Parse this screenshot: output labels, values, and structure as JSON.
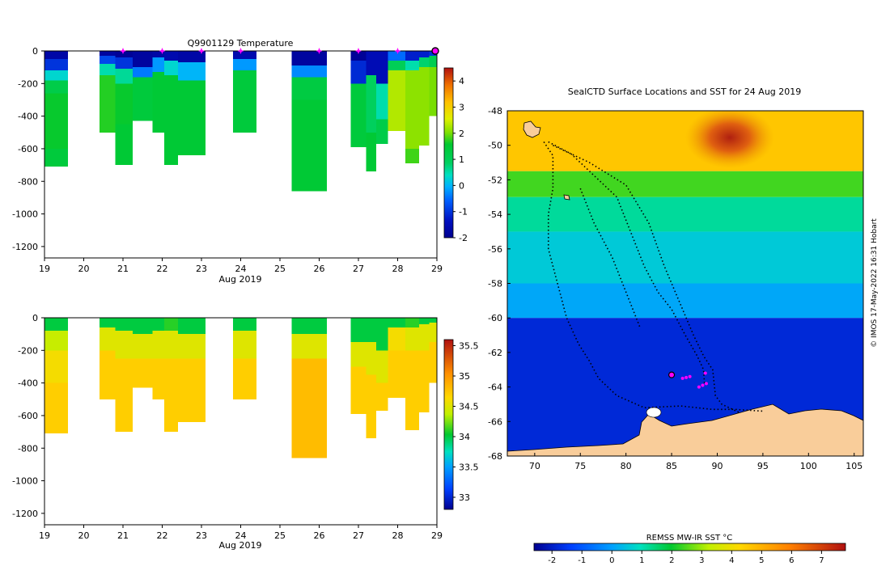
{
  "chart_data": [
    {
      "type": "heatmap",
      "title": "Q9901129  Temperature",
      "xlabel": "Aug 2019",
      "ylabel": "",
      "xlim": [
        19,
        29
      ],
      "ylim": [
        -1270,
        0
      ],
      "x_ticks": [
        19,
        20,
        21,
        22,
        23,
        24,
        25,
        26,
        27,
        28,
        29
      ],
      "y_ticks": [
        0,
        -200,
        -400,
        -600,
        -800,
        -1000,
        -1200
      ],
      "colorbar": {
        "min": -2,
        "max": 4.5,
        "ticks": [
          -2,
          -1,
          0,
          1,
          2,
          3,
          4
        ]
      },
      "surface_markers_x": [
        21,
        22,
        23,
        24,
        26,
        27,
        28
      ],
      "last_marker_x": 29,
      "profiles": [
        {
          "x0": 19.0,
          "x1": 19.6,
          "depth": 710,
          "layers": [
            [
              0,
              50,
              -1.7
            ],
            [
              50,
              120,
              -1.0
            ],
            [
              120,
              180,
              0.3
            ],
            [
              180,
              260,
              1.2
            ],
            [
              260,
              600,
              1.6
            ],
            [
              600,
              710,
              1.4
            ]
          ]
        },
        {
          "x0": 20.4,
          "x1": 20.8,
          "depth": 500,
          "layers": [
            [
              0,
              30,
              -1.8
            ],
            [
              30,
              80,
              -0.8
            ],
            [
              80,
              150,
              0.5
            ],
            [
              150,
              500,
              1.7
            ]
          ]
        },
        {
          "x0": 20.8,
          "x1": 21.25,
          "depth": 700,
          "layers": [
            [
              0,
              40,
              -1.9
            ],
            [
              40,
              110,
              -1.0
            ],
            [
              110,
              200,
              0.6
            ],
            [
              200,
              450,
              1.6
            ],
            [
              450,
              700,
              1.5
            ]
          ]
        },
        {
          "x0": 21.25,
          "x1": 21.75,
          "depth": 430,
          "layers": [
            [
              0,
              100,
              -1.8
            ],
            [
              100,
              160,
              -0.4
            ],
            [
              160,
              430,
              1.4
            ]
          ]
        },
        {
          "x0": 21.75,
          "x1": 22.05,
          "depth": 500,
          "layers": [
            [
              0,
              40,
              -1.7
            ],
            [
              40,
              130,
              -0.2
            ],
            [
              130,
              500,
              1.5
            ]
          ]
        },
        {
          "x0": 22.05,
          "x1": 22.4,
          "depth": 700,
          "layers": [
            [
              0,
              60,
              -1.6
            ],
            [
              60,
              150,
              0.3
            ],
            [
              150,
              700,
              1.5
            ]
          ]
        },
        {
          "x0": 22.4,
          "x1": 23.1,
          "depth": 640,
          "layers": [
            [
              0,
              70,
              -1.7
            ],
            [
              70,
              180,
              0.0
            ],
            [
              180,
              640,
              1.5
            ]
          ]
        },
        {
          "x0": 23.8,
          "x1": 24.4,
          "depth": 500,
          "layers": [
            [
              0,
              50,
              -1.6
            ],
            [
              50,
              120,
              -0.2
            ],
            [
              120,
              500,
              1.4
            ]
          ]
        },
        {
          "x0": 25.3,
          "x1": 26.2,
          "depth": 860,
          "layers": [
            [
              0,
              90,
              -1.8
            ],
            [
              90,
              160,
              -0.3
            ],
            [
              160,
              300,
              1.3
            ],
            [
              300,
              860,
              1.5
            ]
          ]
        },
        {
          "x0": 26.8,
          "x1": 27.2,
          "depth": 590,
          "layers": [
            [
              0,
              60,
              -1.9
            ],
            [
              60,
              200,
              -1.1
            ],
            [
              200,
              590,
              1.4
            ]
          ]
        },
        {
          "x0": 27.2,
          "x1": 27.45,
          "depth": 740,
          "layers": [
            [
              0,
              150,
              -1.5
            ],
            [
              150,
              500,
              0.9
            ],
            [
              500,
              740,
              1.5
            ]
          ]
        },
        {
          "x0": 27.45,
          "x1": 27.75,
          "depth": 570,
          "layers": [
            [
              0,
              200,
              -1.5
            ],
            [
              200,
              420,
              0.5
            ],
            [
              420,
              570,
              1.2
            ]
          ]
        },
        {
          "x0": 27.75,
          "x1": 28.2,
          "depth": 490,
          "layers": [
            [
              0,
              60,
              -0.5
            ],
            [
              60,
              120,
              1.0
            ],
            [
              120,
              490,
              2.3
            ]
          ]
        },
        {
          "x0": 28.2,
          "x1": 28.55,
          "depth": 690,
          "layers": [
            [
              0,
              60,
              -1.2
            ],
            [
              60,
              120,
              0.5
            ],
            [
              120,
              600,
              2.1
            ],
            [
              600,
              690,
              1.8
            ]
          ]
        },
        {
          "x0": 28.55,
          "x1": 28.8,
          "depth": 580,
          "layers": [
            [
              0,
              40,
              -1.2
            ],
            [
              40,
              100,
              0.8
            ],
            [
              100,
              580,
              2.1
            ]
          ]
        },
        {
          "x0": 28.8,
          "x1": 29.05,
          "depth": 400,
          "layers": [
            [
              0,
              30,
              -1.0
            ],
            [
              30,
              100,
              1.1
            ],
            [
              100,
              400,
              2.0
            ]
          ]
        }
      ]
    },
    {
      "type": "heatmap",
      "title": "",
      "xlabel": "Aug 2019",
      "ylabel": "",
      "xlim": [
        19,
        29
      ],
      "ylim": [
        -1270,
        0
      ],
      "x_ticks": [
        19,
        20,
        21,
        22,
        23,
        24,
        25,
        26,
        27,
        28,
        29
      ],
      "y_ticks": [
        0,
        -200,
        -400,
        -600,
        -800,
        -1000,
        -1200
      ],
      "colorbar": {
        "min": 32.8,
        "max": 35.6,
        "ticks": [
          33,
          33.5,
          34,
          34.5,
          35,
          35.5
        ]
      },
      "profiles": [
        {
          "x0": 19.0,
          "x1": 19.6,
          "depth": 710,
          "layers": [
            [
              0,
              80,
              34.0
            ],
            [
              80,
              200,
              34.4
            ],
            [
              200,
              400,
              34.6
            ],
            [
              400,
              710,
              34.7
            ]
          ]
        },
        {
          "x0": 20.4,
          "x1": 20.8,
          "depth": 500,
          "layers": [
            [
              0,
              60,
              34.0
            ],
            [
              60,
              200,
              34.5
            ],
            [
              200,
              500,
              34.7
            ]
          ]
        },
        {
          "x0": 20.8,
          "x1": 21.25,
          "depth": 700,
          "layers": [
            [
              0,
              80,
              34.0
            ],
            [
              80,
              250,
              34.5
            ],
            [
              250,
              700,
              34.7
            ]
          ]
        },
        {
          "x0": 21.25,
          "x1": 21.75,
          "depth": 430,
          "layers": [
            [
              0,
              100,
              34.0
            ],
            [
              100,
              250,
              34.5
            ],
            [
              250,
              430,
              34.7
            ]
          ]
        },
        {
          "x0": 21.75,
          "x1": 22.05,
          "depth": 500,
          "layers": [
            [
              0,
              80,
              34.0
            ],
            [
              80,
              250,
              34.5
            ],
            [
              250,
              500,
              34.7
            ]
          ]
        },
        {
          "x0": 22.05,
          "x1": 22.4,
          "depth": 700,
          "layers": [
            [
              0,
              80,
              34.1
            ],
            [
              80,
              250,
              34.5
            ],
            [
              250,
              700,
              34.7
            ]
          ]
        },
        {
          "x0": 22.4,
          "x1": 23.1,
          "depth": 640,
          "layers": [
            [
              0,
              100,
              34.0
            ],
            [
              100,
              250,
              34.5
            ],
            [
              250,
              640,
              34.7
            ]
          ]
        },
        {
          "x0": 23.8,
          "x1": 24.4,
          "depth": 500,
          "layers": [
            [
              0,
              80,
              34.0
            ],
            [
              80,
              250,
              34.5
            ],
            [
              250,
              500,
              34.7
            ]
          ]
        },
        {
          "x0": 25.3,
          "x1": 26.2,
          "depth": 860,
          "layers": [
            [
              0,
              100,
              34.0
            ],
            [
              100,
              250,
              34.5
            ],
            [
              250,
              860,
              34.8
            ]
          ]
        },
        {
          "x0": 26.8,
          "x1": 27.2,
          "depth": 590,
          "layers": [
            [
              0,
              150,
              34.0
            ],
            [
              150,
              300,
              34.5
            ],
            [
              300,
              590,
              34.7
            ]
          ]
        },
        {
          "x0": 27.2,
          "x1": 27.45,
          "depth": 740,
          "layers": [
            [
              0,
              150,
              34.0
            ],
            [
              150,
              350,
              34.5
            ],
            [
              350,
              740,
              34.7
            ]
          ]
        },
        {
          "x0": 27.45,
          "x1": 27.75,
          "depth": 570,
          "layers": [
            [
              0,
              200,
              34.0
            ],
            [
              200,
              400,
              34.5
            ],
            [
              400,
              570,
              34.7
            ]
          ]
        },
        {
          "x0": 27.75,
          "x1": 28.2,
          "depth": 490,
          "layers": [
            [
              0,
              60,
              34.0
            ],
            [
              60,
              200,
              34.6
            ],
            [
              200,
              490,
              34.7
            ]
          ]
        },
        {
          "x0": 28.2,
          "x1": 28.55,
          "depth": 690,
          "layers": [
            [
              0,
              60,
              34.1
            ],
            [
              60,
              200,
              34.5
            ],
            [
              200,
              690,
              34.7
            ]
          ]
        },
        {
          "x0": 28.55,
          "x1": 28.8,
          "depth": 580,
          "layers": [
            [
              0,
              40,
              34.0
            ],
            [
              40,
              200,
              34.5
            ],
            [
              200,
              580,
              34.7
            ]
          ]
        },
        {
          "x0": 28.8,
          "x1": 29.05,
          "depth": 400,
          "layers": [
            [
              0,
              30,
              34.0
            ],
            [
              30,
              150,
              34.5
            ],
            [
              150,
              400,
              34.7
            ]
          ]
        }
      ]
    },
    {
      "type": "map",
      "title": "SealCTD Surface Locations and SST for 24 Aug 2019",
      "xlim": [
        67,
        106
      ],
      "ylim": [
        -68,
        -48
      ],
      "x_ticks": [
        70,
        75,
        80,
        85,
        90,
        95,
        100,
        105
      ],
      "y_ticks": [
        -48,
        -50,
        -52,
        -54,
        -56,
        -58,
        -60,
        -62,
        -64,
        -66,
        -68
      ],
      "colorbar_label": "REMSS MW-IR SST °C",
      "colorbar": {
        "min": -2.6,
        "max": 7.8,
        "ticks": [
          -2,
          -1,
          0,
          1,
          2,
          3,
          4,
          5,
          6,
          7
        ]
      },
      "sst_regions": [
        {
          "lat_north": -48,
          "lat_south": -51.5,
          "sst": 4.6
        },
        {
          "lat_north": -51.5,
          "lat_south": -53,
          "sst": 2.4
        },
        {
          "lat_north": -53,
          "lat_south": -55,
          "sst": 1.2
        },
        {
          "lat_north": -55,
          "lat_south": -58,
          "sst": 0.6
        },
        {
          "lat_north": -58,
          "lat_south": -60,
          "sst": 0.1
        },
        {
          "lat_north": -60,
          "lat_south": -68,
          "sst": -1.8
        }
      ],
      "hotspot": {
        "lon": 91,
        "lat": -49.5,
        "sst": 6.8
      },
      "current_positions": [
        {
          "lon": 85.0,
          "lat": -63.3
        },
        {
          "lon": 86.2,
          "lat": -63.5
        },
        {
          "lon": 86.6,
          "lat": -63.45
        },
        {
          "lon": 87.0,
          "lat": -63.4
        },
        {
          "lon": 88.0,
          "lat": -64.0
        },
        {
          "lon": 88.4,
          "lat": -63.9
        },
        {
          "lon": 88.8,
          "lat": -63.8
        },
        {
          "lon": 88.7,
          "lat": -63.2
        }
      ],
      "tracks": [
        [
          [
            71,
            -49.8
          ],
          [
            72,
            -50.6
          ],
          [
            72,
            -52.5
          ],
          [
            71.5,
            -54
          ],
          [
            71.5,
            -56
          ],
          [
            72.5,
            -58
          ],
          [
            73.5,
            -60
          ],
          [
            74.8,
            -61.5
          ],
          [
            76,
            -62.5
          ],
          [
            77,
            -63.5
          ],
          [
            79,
            -64.5
          ],
          [
            82,
            -65.2
          ],
          [
            86,
            -65.1
          ],
          [
            89.5,
            -65.3
          ],
          [
            92,
            -65.3
          ],
          [
            95,
            -65.4
          ]
        ],
        [
          [
            71.5,
            -49.8
          ],
          [
            74,
            -50.5
          ],
          [
            77,
            -52
          ],
          [
            79,
            -53
          ],
          [
            80.5,
            -55
          ],
          [
            82,
            -57
          ],
          [
            83.5,
            -58.5
          ],
          [
            85,
            -59.5
          ],
          [
            86.5,
            -61
          ],
          [
            87.8,
            -62.2
          ],
          [
            88.5,
            -63
          ],
          [
            88.6,
            -63.8
          ]
        ],
        [
          [
            72,
            -50
          ],
          [
            76,
            -51
          ],
          [
            80,
            -52.3
          ],
          [
            82.5,
            -54.5
          ],
          [
            84.2,
            -57
          ],
          [
            85.8,
            -59
          ],
          [
            87.4,
            -61
          ],
          [
            88.5,
            -62.2
          ],
          [
            89.5,
            -63
          ],
          [
            89.8,
            -64.5
          ],
          [
            90.5,
            -65
          ],
          [
            92.5,
            -65.5
          ]
        ],
        [
          [
            75,
            -52.5
          ],
          [
            76.5,
            -54.5
          ],
          [
            78.5,
            -56.5
          ],
          [
            80,
            -58.5
          ],
          [
            81.5,
            -60.5
          ]
        ]
      ],
      "side_text": "© IMOS 17-May-2022 16:31 Hobart"
    }
  ]
}
